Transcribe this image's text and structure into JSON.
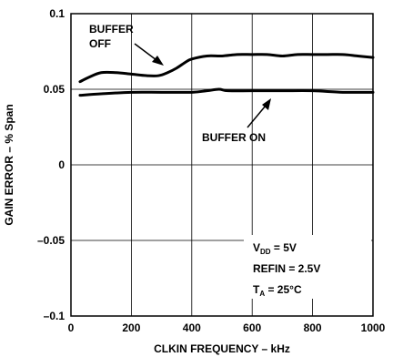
{
  "chart_data": {
    "type": "line",
    "xlabel": "CLKIN FREQUENCY – kHz",
    "ylabel": "GAIN ERROR – % Span",
    "xlim": [
      0,
      1000
    ],
    "ylim": [
      -0.1,
      0.1
    ],
    "x_ticks": [
      0,
      200,
      400,
      600,
      800,
      1000
    ],
    "x_tick_labels": [
      "0",
      "200",
      "400",
      "600",
      "800",
      "1000"
    ],
    "y_ticks": [
      -0.1,
      -0.05,
      0,
      0.05,
      0.1
    ],
    "y_tick_labels": [
      "–0.1",
      "–0.05",
      "0",
      "0.05",
      "0.1"
    ],
    "grid": true,
    "series": [
      {
        "name": "BUFFER OFF",
        "x": [
          30,
          60,
          100,
          150,
          200,
          250,
          290,
          320,
          350,
          380,
          400,
          450,
          500,
          550,
          600,
          650,
          700,
          750,
          800,
          850,
          900,
          950,
          1000
        ],
        "y": [
          0.055,
          0.058,
          0.061,
          0.061,
          0.06,
          0.059,
          0.059,
          0.061,
          0.064,
          0.068,
          0.07,
          0.072,
          0.072,
          0.073,
          0.073,
          0.073,
          0.072,
          0.073,
          0.073,
          0.073,
          0.073,
          0.072,
          0.071
        ]
      },
      {
        "name": "BUFFER ON",
        "x": [
          30,
          100,
          200,
          300,
          400,
          450,
          490,
          520,
          600,
          700,
          800,
          900,
          1000
        ],
        "y": [
          0.046,
          0.047,
          0.048,
          0.048,
          0.048,
          0.049,
          0.05,
          0.049,
          0.049,
          0.049,
          0.049,
          0.048,
          0.048
        ]
      }
    ],
    "conditions": {
      "vdd": {
        "base": "V",
        "sub": "DD",
        "value": " = 5V"
      },
      "refin": "REFIN = 2.5V",
      "ta": {
        "base": "T",
        "sub": "A",
        "value": " = 25°C"
      }
    }
  },
  "labels": {
    "buffer_off_line1": "BUFFER",
    "buffer_off_line2": "OFF",
    "buffer_on": "BUFFER ON"
  }
}
